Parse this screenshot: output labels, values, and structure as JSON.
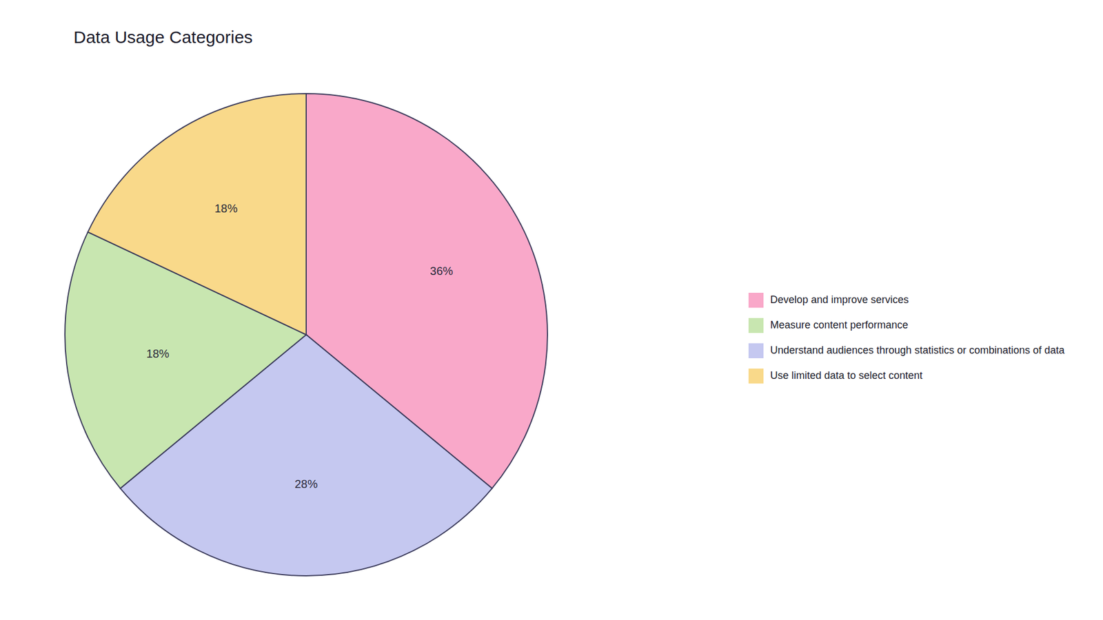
{
  "chart_data": {
    "type": "pie",
    "title": "Data Usage Categories",
    "categories": [
      "Develop and improve services",
      "Understand audiences through statistics or combinations of data",
      "Measure content performance",
      "Use limited data to select content"
    ],
    "values": [
      36,
      28,
      18,
      18
    ],
    "value_labels": [
      "36%",
      "28%",
      "18%",
      "18%"
    ],
    "colors": [
      "#f9a8c9",
      "#c5c8f0",
      "#c8e6b0",
      "#f9d98a"
    ],
    "data_labels": true,
    "legend": "right"
  }
}
